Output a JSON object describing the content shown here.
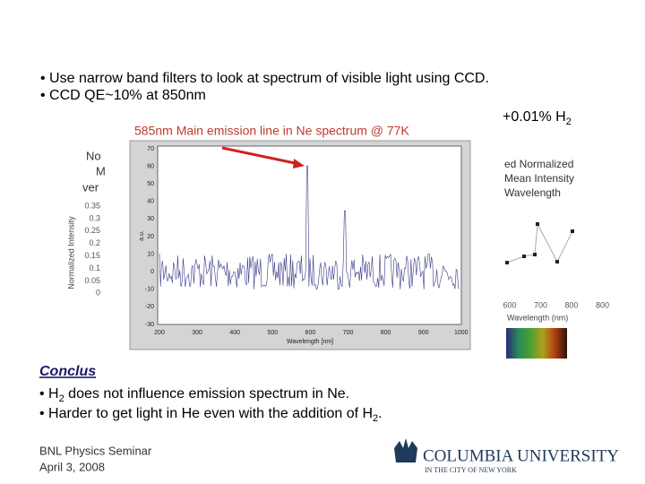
{
  "slide": {
    "bullets": [
      "• Use narrow band filters to look at spectrum of visible light using CCD.",
      "• CCD QE~10% at 850nm"
    ],
    "h2_note": {
      "text": "+0.01% H",
      "sub": "2"
    },
    "figure": {
      "caption": "585nm Main emission line in Ne spectrum @ 77K",
      "x_label": "Wavelength [nm]",
      "y_label": "a.u.",
      "yticks": [
        "70",
        "60",
        "50",
        "40",
        "30",
        "20",
        "10",
        "0",
        "-10",
        "-20",
        "-30"
      ],
      "xticks": [
        "200",
        "300",
        "400",
        "500",
        "600",
        "700",
        "800",
        "900",
        "1000"
      ]
    },
    "left_figure": {
      "title_fragments": [
        "No",
        "M",
        "ver"
      ],
      "y_label": "Normalized Intensity",
      "yticks": [
        "0.35",
        "0.3",
        "0.25",
        "0.2",
        "0.15",
        "0.1",
        "0.05",
        "0"
      ]
    },
    "right_figure": {
      "title_lines": [
        "ed Normalized",
        "Mean Intensity",
        "Wavelength"
      ],
      "xticks": [
        "600",
        "700",
        "800",
        "800"
      ],
      "x_label": "Wavelength (nm)"
    },
    "conclusion": {
      "heading": "Conclus",
      "items": [
        {
          "before": "• H",
          "sub": "2",
          "after": " does not influence emission spectrum in Ne."
        },
        {
          "before": "• Harder to get light in He even with the addition of H",
          "sub": "2",
          "after": "."
        }
      ]
    },
    "footer": {
      "lines": [
        "BNL Physics Seminar",
        "April 3, 2008"
      ]
    },
    "logo": {
      "name": "COLUMBIA UNIVERSITY",
      "tagline": "IN THE CITY OF NEW YORK"
    }
  }
}
